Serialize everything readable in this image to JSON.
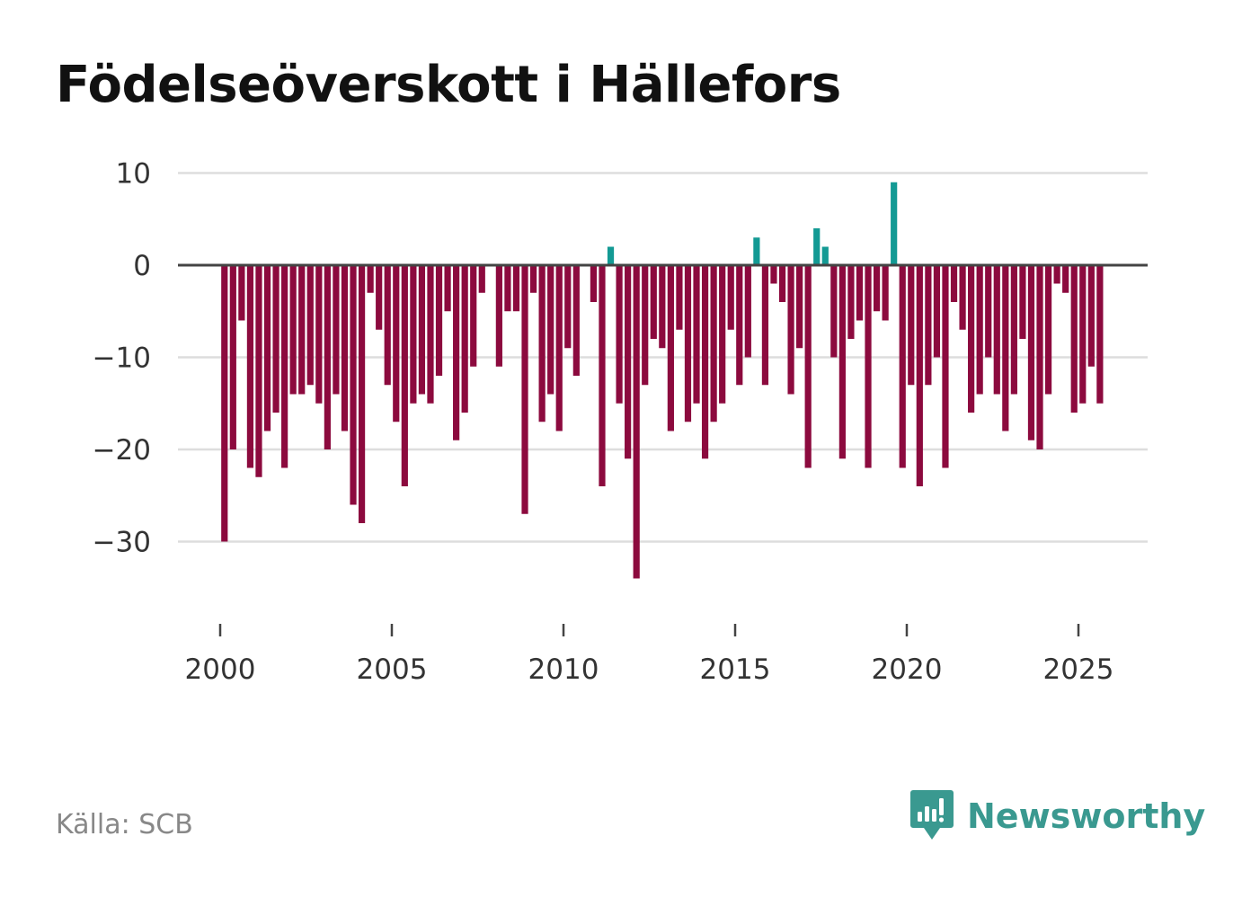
{
  "chart_data": {
    "type": "bar",
    "title": "Födelseöverskott i Hällefors",
    "xlabel": "",
    "ylabel": "",
    "ylim": [
      -39,
      11
    ],
    "xlim": [
      1999.5,
      2027
    ],
    "x_ticks": [
      2000,
      2005,
      2010,
      2015,
      2020,
      2025
    ],
    "y_ticks": [
      10,
      0,
      -10,
      -20,
      -30
    ],
    "x_tick_labels": [
      "2000",
      "2005",
      "2010",
      "2015",
      "2020",
      "2025"
    ],
    "y_tick_labels": [
      "10",
      "0",
      "−10",
      "−20",
      "−30"
    ],
    "grid": true,
    "positive_color": "#139a94",
    "negative_color": "#8c0a3e",
    "period": "quarterly",
    "x_start": 2000.125,
    "x_step": 0.25,
    "values": [
      -30,
      -20,
      -6,
      -22,
      -23,
      -18,
      -16,
      -22,
      -14,
      -14,
      -13,
      -15,
      -20,
      -14,
      -18,
      -26,
      -28,
      -3,
      -7,
      -13,
      -17,
      -24,
      -15,
      -14,
      -15,
      -12,
      -5,
      -19,
      -16,
      -11,
      -3,
      0,
      -11,
      -5,
      -5,
      -27,
      -3,
      -17,
      -14,
      -18,
      -9,
      -12,
      0,
      -4,
      -24,
      2,
      -15,
      -21,
      -34,
      -13,
      -8,
      -9,
      -18,
      -7,
      -17,
      -15,
      -21,
      -17,
      -15,
      -7,
      -13,
      -10,
      3,
      -13,
      -2,
      -4,
      -14,
      -9,
      -22,
      4,
      2,
      -10,
      -21,
      -8,
      -6,
      -22,
      -5,
      -6,
      9,
      -22,
      -13,
      -24,
      -13,
      -10,
      -22,
      -4,
      -7,
      -16,
      -14,
      -10,
      -14,
      -18,
      -14,
      -8,
      -19,
      -20,
      -14,
      -2,
      -3,
      -16,
      -15,
      -11,
      -15
    ]
  },
  "source": "Källa: SCB",
  "brand": {
    "name": "Newsworthy",
    "icon": "newsworthy-logo-icon",
    "color": "#3a9990"
  }
}
